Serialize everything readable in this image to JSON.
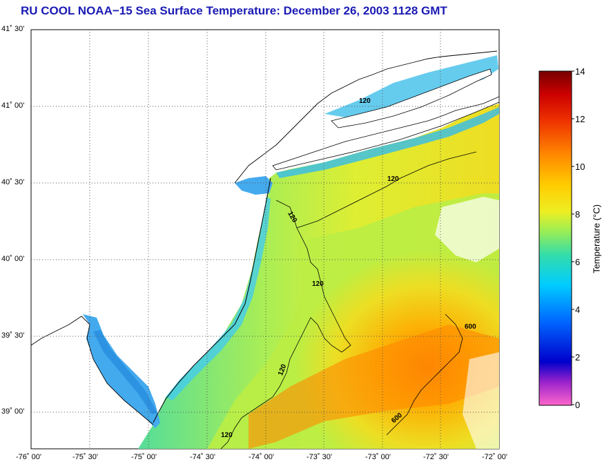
{
  "title": "RU COOL  NOAA−15  Sea Surface Temperature:  December 26, 2003 1128 GMT",
  "map": {
    "lat_labels": [
      "41˚ 30'",
      "41˚ 00'",
      "40˚ 30'",
      "40˚ 00'",
      "39˚ 30'",
      "39˚ 00'"
    ],
    "lon_labels": [
      "-76˚ 00'",
      "-75˚ 30'",
      "-75˚ 00'",
      "-74˚ 30'",
      "-74˚ 00'",
      "-73˚ 30'",
      "-73˚ 00'",
      "-72˚ 30'",
      "-72˚ 00'"
    ],
    "contour_labels": [
      "120",
      "120",
      "120",
      "120",
      "120",
      "120",
      "600",
      "600"
    ]
  },
  "colorbar": {
    "title": "Temperature (°C)",
    "ticks": [
      "14",
      "12",
      "10",
      "8",
      "6",
      "4",
      "2",
      "0"
    ],
    "range": [
      0,
      14
    ],
    "colors": [
      "#ff66cc",
      "#8800cc",
      "#0000cc",
      "#0066ff",
      "#00ccff",
      "#33ddaa",
      "#99ee55",
      "#eeee22",
      "#ffcc00",
      "#ff8800",
      "#ee3300",
      "#cc0000",
      "#880000"
    ]
  }
}
